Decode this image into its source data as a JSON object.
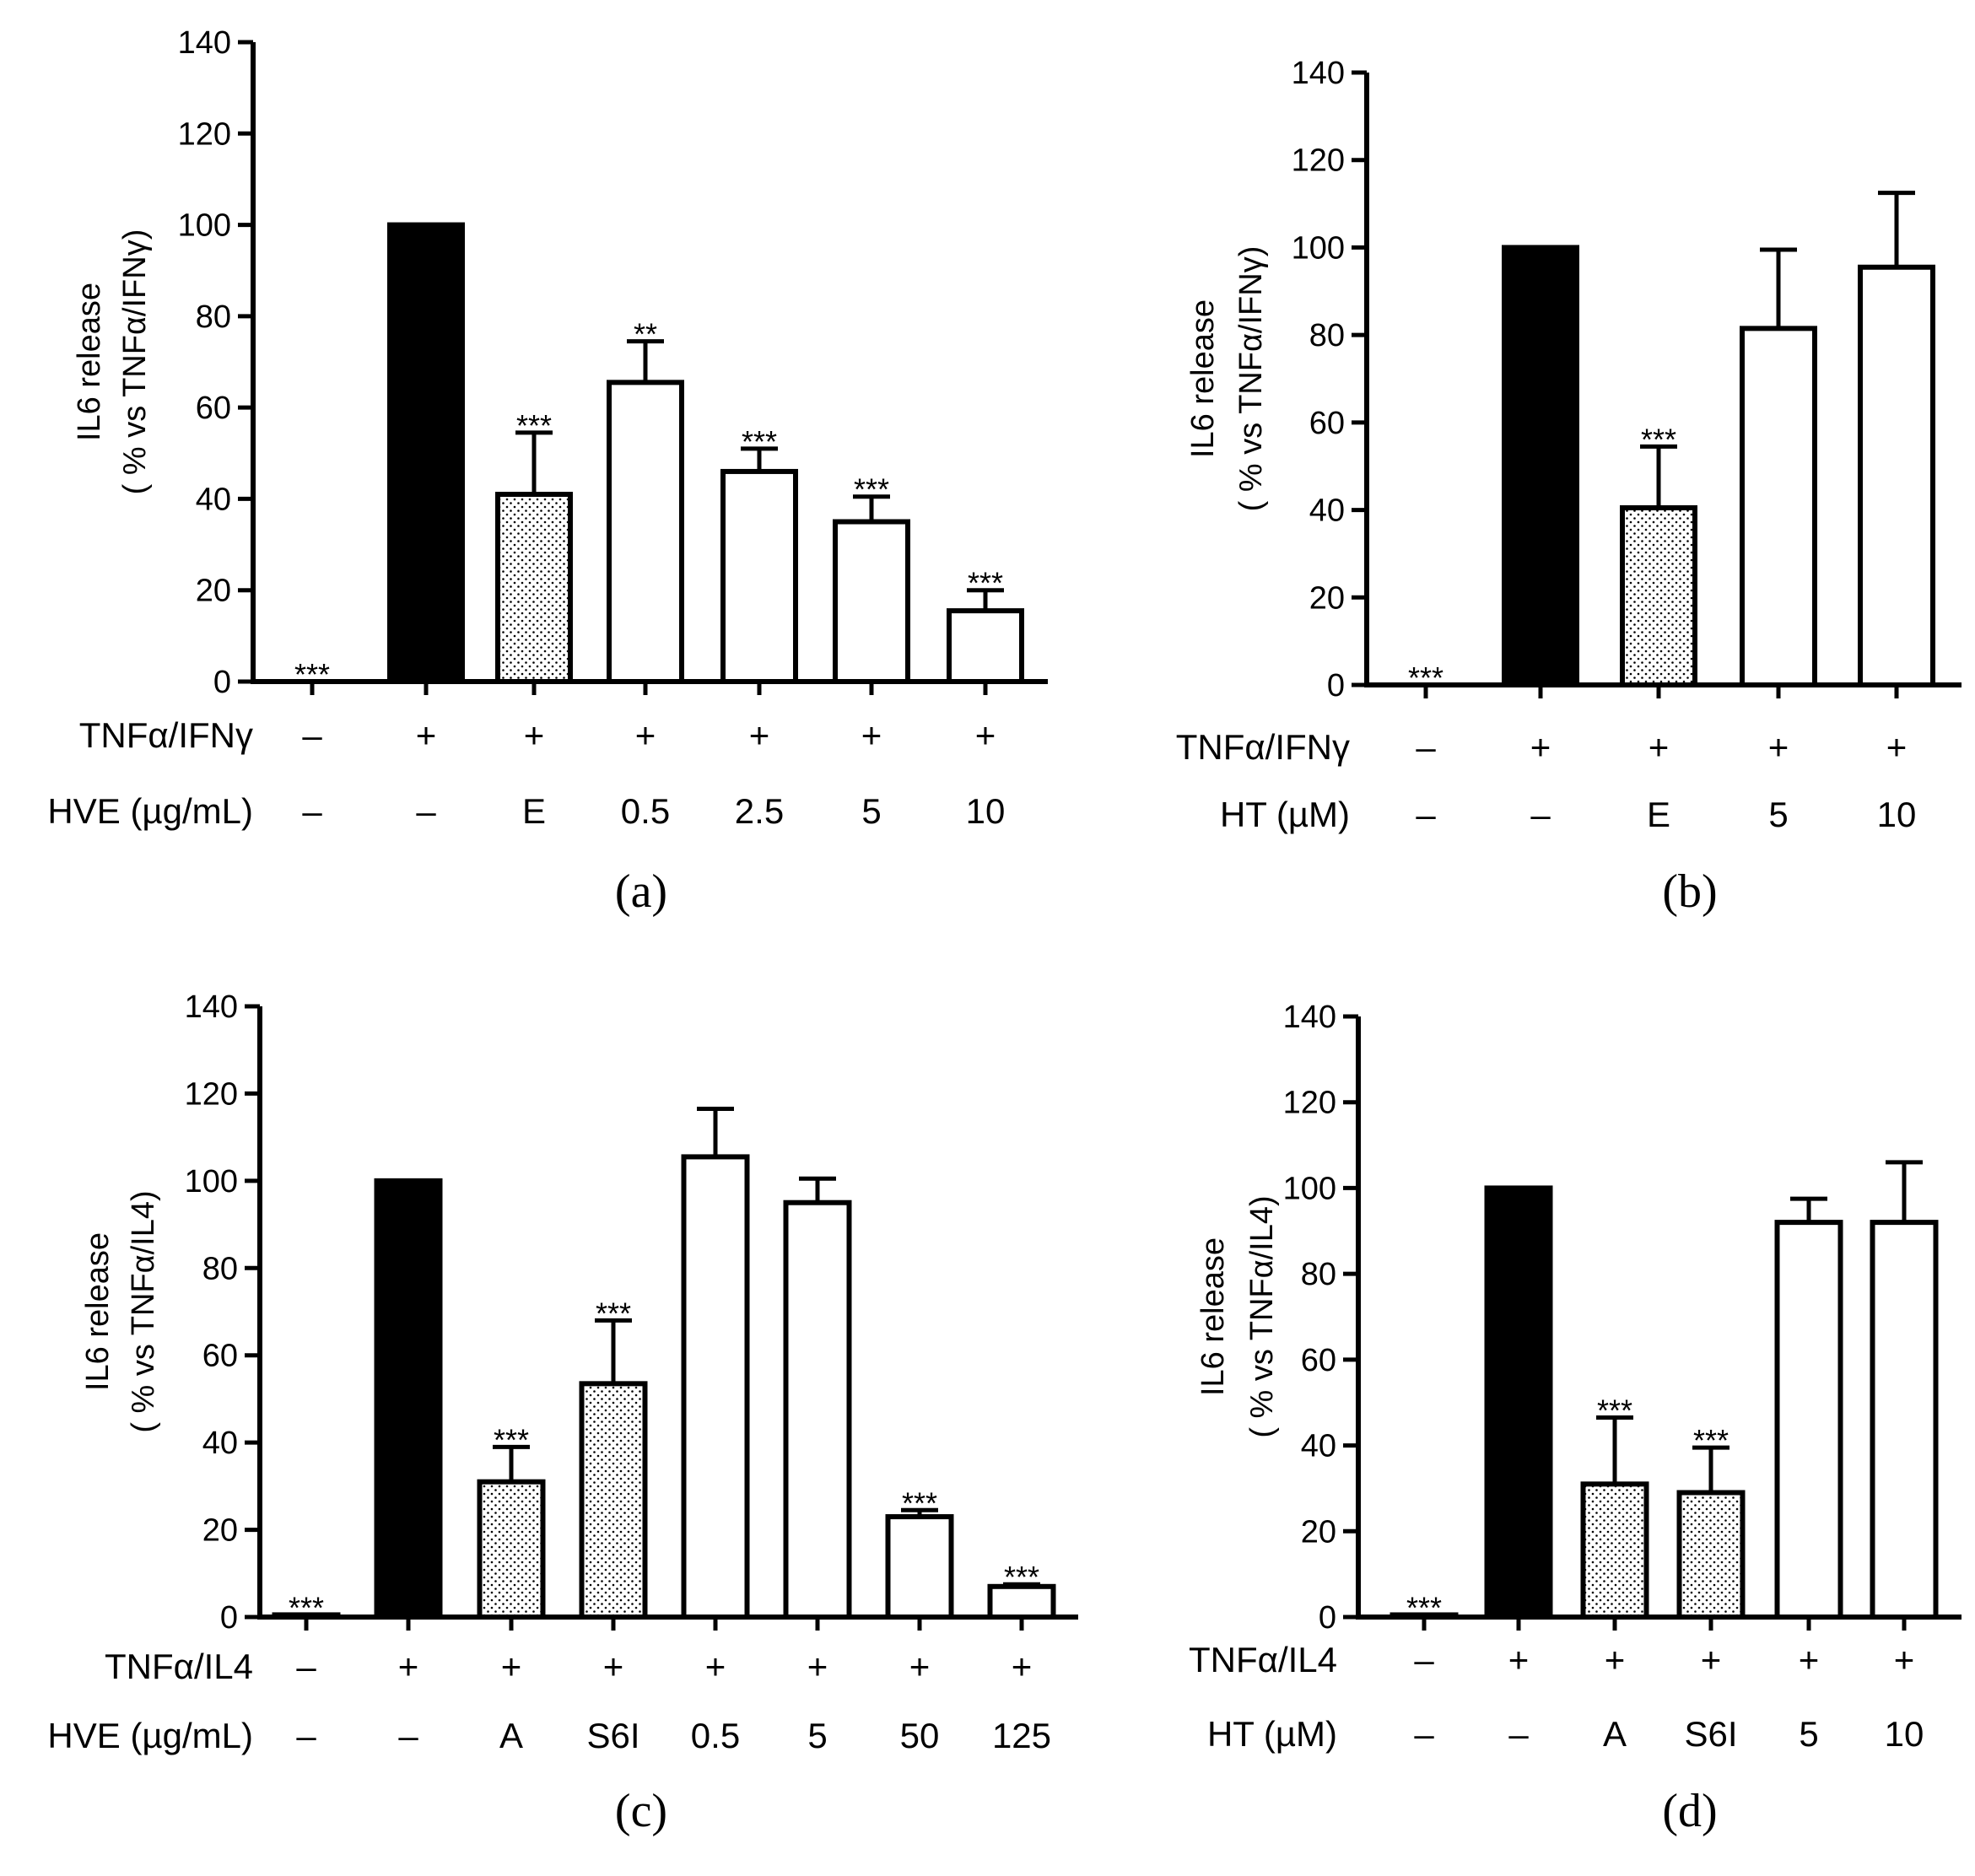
{
  "chart_data": [
    {
      "type": "bar",
      "panel_label": "(a)",
      "ylabel_line1": "IL6 release",
      "ylabel_line2": "( % vs TNFα/IFNγ)",
      "ylim": [
        0,
        140
      ],
      "yticks": [
        0,
        20,
        40,
        60,
        80,
        100,
        120,
        140
      ],
      "rows": [
        {
          "label": "TNFα/IFNγ",
          "values": [
            "–",
            "+",
            "+",
            "+",
            "+",
            "+",
            "+"
          ]
        },
        {
          "label": "HVE (µg/mL)",
          "values": [
            "–",
            "–",
            "E",
            "0.5",
            "2.5",
            "5",
            "10"
          ]
        }
      ],
      "bars": [
        {
          "value": 0,
          "error": 0,
          "fill": "none",
          "sig": "***"
        },
        {
          "value": 100,
          "error": 0,
          "fill": "black",
          "sig": ""
        },
        {
          "value": 41,
          "error": 13.5,
          "fill": "dotted",
          "sig": "***"
        },
        {
          "value": 65.5,
          "error": 9,
          "fill": "white",
          "sig": "**"
        },
        {
          "value": 46,
          "error": 5,
          "fill": "white",
          "sig": "***"
        },
        {
          "value": 35,
          "error": 5.5,
          "fill": "white",
          "sig": "***"
        },
        {
          "value": 15.5,
          "error": 4.5,
          "fill": "white",
          "sig": "***"
        }
      ]
    },
    {
      "type": "bar",
      "panel_label": "(b)",
      "ylabel_line1": "IL6 release",
      "ylabel_line2": "( % vs TNFα/IFNγ)",
      "ylim": [
        0,
        140
      ],
      "yticks": [
        0,
        20,
        40,
        60,
        80,
        100,
        120,
        140
      ],
      "rows": [
        {
          "label": "TNFα/IFNγ",
          "values": [
            "–",
            "+",
            "+",
            "+",
            "+"
          ]
        },
        {
          "label": "HT (µM)",
          "values": [
            "–",
            "–",
            "E",
            "5",
            "10"
          ]
        }
      ],
      "bars": [
        {
          "value": 0,
          "error": 0,
          "fill": "none",
          "sig": "***"
        },
        {
          "value": 100,
          "error": 0,
          "fill": "black",
          "sig": ""
        },
        {
          "value": 40.5,
          "error": 14,
          "fill": "dotted",
          "sig": "***"
        },
        {
          "value": 81.5,
          "error": 18,
          "fill": "white",
          "sig": ""
        },
        {
          "value": 95.5,
          "error": 17,
          "fill": "white",
          "sig": ""
        }
      ]
    },
    {
      "type": "bar",
      "panel_label": "(c)",
      "ylabel_line1": "IL6 release",
      "ylabel_line2": "( % vs TNFα/IL4)",
      "ylim": [
        0,
        140
      ],
      "yticks": [
        0,
        20,
        40,
        60,
        80,
        100,
        120,
        140
      ],
      "rows": [
        {
          "label": "TNFα/IL4",
          "values": [
            "–",
            "+",
            "+",
            "+",
            "+",
            "+",
            "+",
            "+"
          ]
        },
        {
          "label": "HVE (µg/mL)",
          "values": [
            "–",
            "–",
            "A",
            "S6I",
            "0.5",
            "5",
            "50",
            "125"
          ]
        }
      ],
      "bars": [
        {
          "value": 0.5,
          "error": 0,
          "fill": "white",
          "sig": "***"
        },
        {
          "value": 100,
          "error": 0,
          "fill": "black",
          "sig": ""
        },
        {
          "value": 31,
          "error": 8,
          "fill": "dotted",
          "sig": "***"
        },
        {
          "value": 53.5,
          "error": 14.5,
          "fill": "dotted",
          "sig": "***"
        },
        {
          "value": 105.5,
          "error": 11,
          "fill": "white",
          "sig": ""
        },
        {
          "value": 95,
          "error": 5.5,
          "fill": "white",
          "sig": ""
        },
        {
          "value": 23,
          "error": 1.5,
          "fill": "white",
          "sig": "***"
        },
        {
          "value": 7,
          "error": 0.5,
          "fill": "white",
          "sig": "***"
        }
      ]
    },
    {
      "type": "bar",
      "panel_label": "(d)",
      "ylabel_line1": "IL6 release",
      "ylabel_line2": "( % vs TNFα/IL4)",
      "ylim": [
        0,
        140
      ],
      "yticks": [
        0,
        20,
        40,
        60,
        80,
        100,
        120,
        140
      ],
      "rows": [
        {
          "label": "TNFα/IL4",
          "values": [
            "–",
            "+",
            "+",
            "+",
            "+",
            "+"
          ]
        },
        {
          "label": "HT (µM)",
          "values": [
            "–",
            "–",
            "A",
            "S6I",
            "5",
            "10"
          ]
        }
      ],
      "bars": [
        {
          "value": 0.5,
          "error": 0,
          "fill": "white",
          "sig": "***"
        },
        {
          "value": 100,
          "error": 0,
          "fill": "black",
          "sig": ""
        },
        {
          "value": 31,
          "error": 15.5,
          "fill": "dotted",
          "sig": "***"
        },
        {
          "value": 29,
          "error": 10.5,
          "fill": "dotted",
          "sig": "***"
        },
        {
          "value": 92,
          "error": 5.5,
          "fill": "white",
          "sig": ""
        },
        {
          "value": 92,
          "error": 14,
          "fill": "white",
          "sig": ""
        }
      ]
    }
  ]
}
